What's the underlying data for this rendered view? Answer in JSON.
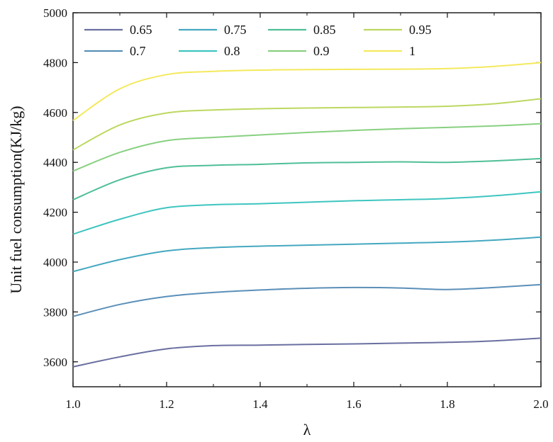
{
  "chart_data": {
    "type": "line",
    "title": "",
    "xlabel": "λ",
    "ylabel": "Unit fuel consumption(KJ/kg)",
    "xlim": [
      1.0,
      2.0
    ],
    "ylim": [
      3500,
      5000
    ],
    "x_ticks": [
      1.0,
      1.2,
      1.4,
      1.6,
      1.8,
      2.0
    ],
    "x_tick_labels": [
      "1.0",
      "1.2",
      "1.4",
      "1.6",
      "1.8",
      "2.0"
    ],
    "y_ticks": [
      3600,
      3800,
      4000,
      4200,
      4400,
      4600,
      4800,
      5000
    ],
    "y_tick_labels": [
      "3600",
      "3800",
      "4000",
      "4200",
      "4400",
      "4600",
      "4800",
      "5000"
    ],
    "grid": false,
    "legend_position": "top",
    "x": [
      1.0,
      1.1,
      1.2,
      1.3,
      1.4,
      1.5,
      1.6,
      1.7,
      1.8,
      1.9,
      2.0
    ],
    "series": [
      {
        "name": "0.65",
        "color": "#6a6fa0",
        "values": [
          3580,
          3620,
          3652,
          3665,
          3667,
          3670,
          3672,
          3675,
          3678,
          3684,
          3695
        ]
      },
      {
        "name": "0.7",
        "color": "#5b8fb8",
        "values": [
          3782,
          3830,
          3862,
          3878,
          3888,
          3895,
          3898,
          3896,
          3890,
          3898,
          3910
        ]
      },
      {
        "name": "0.75",
        "color": "#44a8c0",
        "values": [
          3962,
          4010,
          4045,
          4058,
          4064,
          4068,
          4072,
          4076,
          4080,
          4088,
          4100
        ]
      },
      {
        "name": "0.8",
        "color": "#3ec5c0",
        "values": [
          4112,
          4172,
          4218,
          4230,
          4234,
          4240,
          4246,
          4250,
          4255,
          4266,
          4282
        ]
      },
      {
        "name": "0.85",
        "color": "#4fbf97",
        "values": [
          4250,
          4330,
          4378,
          4388,
          4392,
          4398,
          4400,
          4402,
          4400,
          4406,
          4415
        ]
      },
      {
        "name": "0.9",
        "color": "#88d080",
        "values": [
          4365,
          4440,
          4487,
          4500,
          4510,
          4520,
          4528,
          4535,
          4540,
          4546,
          4555
        ]
      },
      {
        "name": "0.95",
        "color": "#bcd860",
        "values": [
          4450,
          4550,
          4598,
          4610,
          4615,
          4618,
          4620,
          4622,
          4625,
          4635,
          4655
        ]
      },
      {
        "name": "1",
        "color": "#f4e95c",
        "values": [
          4568,
          4695,
          4752,
          4765,
          4770,
          4772,
          4773,
          4774,
          4776,
          4785,
          4800
        ]
      }
    ]
  }
}
